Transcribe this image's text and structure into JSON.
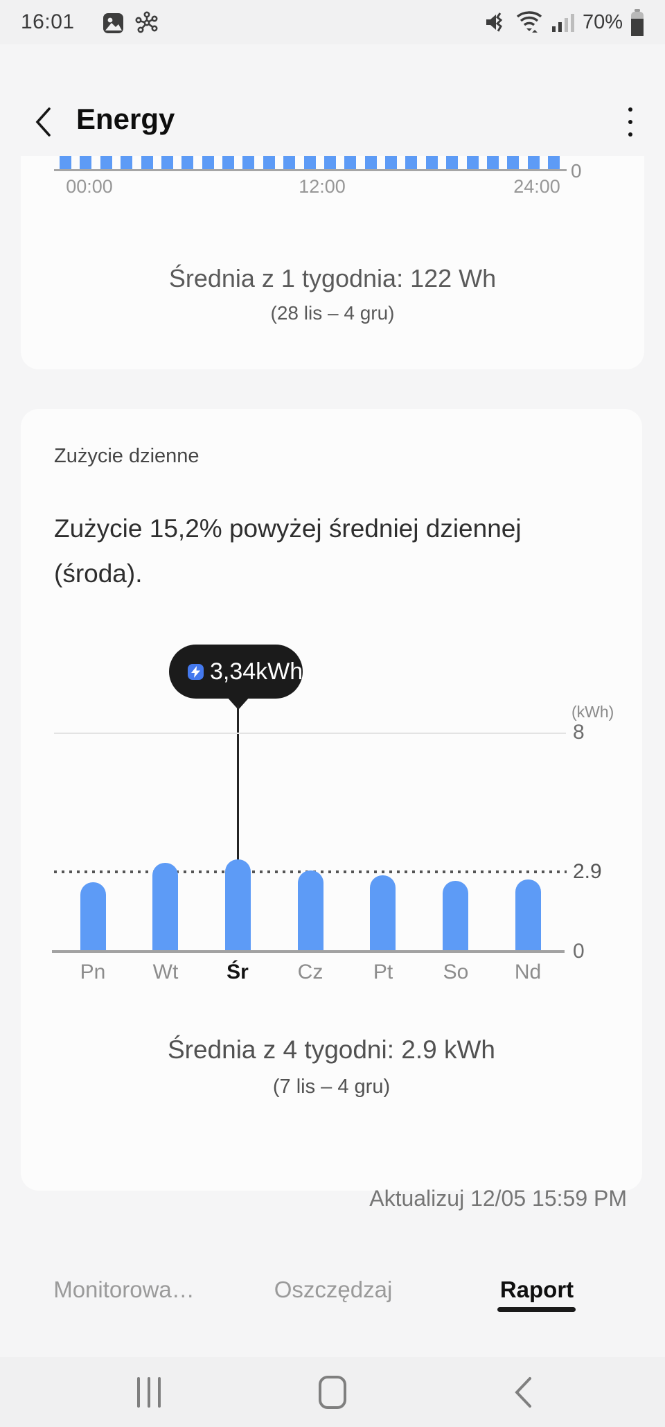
{
  "status_bar": {
    "time": "16:01",
    "battery_percent": "70%"
  },
  "header": {
    "title": "Energy"
  },
  "hourly_card": {
    "y_zero": "0",
    "x_labels": [
      "00:00",
      "12:00",
      "24:00"
    ],
    "average": "Średnia z 1 tygodnia: 122 Wh",
    "range": "(28 lis – 4 gru)"
  },
  "daily_card": {
    "section_title": "Zużycie dzienne",
    "insight": "Zużycie 15,2% powyżej średniej dziennej (środa).",
    "tooltip_value": "3,34kWh",
    "unit_label": "(kWh)",
    "y_max": "8",
    "y_avg": "2.9",
    "y_zero": "0",
    "highlighted_day": "Śr",
    "average": "Średnia z 4 tygodni: 2.9 kWh",
    "range": "(7 lis – 4 gru)"
  },
  "footer": {
    "update_text": "Aktualizuj 12/05 15:59 PM"
  },
  "tabs": {
    "items": [
      {
        "label": "Monitorowa…",
        "active": false
      },
      {
        "label": "Oszczędzaj",
        "active": false
      },
      {
        "label": "Raport",
        "active": true
      }
    ]
  },
  "colors": {
    "accent_blue": "#5D9BF6",
    "tooltip_bg": "#1B1B1B",
    "tooltip_icon_blue": "#4479EE",
    "page_bg": "#F5F5F6",
    "card_bg": "#FCFCFC"
  },
  "chart_data": [
    {
      "type": "bar",
      "title": "Hourly energy use (bottom of chart visible, bars clipped)",
      "unit": "Wh",
      "x": [
        "00:00",
        "12:00",
        "24:00"
      ],
      "values": [
        122,
        122,
        122,
        122,
        122,
        122,
        122,
        122,
        122,
        122,
        122,
        122,
        122,
        122,
        122,
        122,
        122,
        122,
        122,
        122,
        122,
        122,
        122,
        122,
        122
      ],
      "ylabel": "0",
      "note": "25 uniform blue bars, average 122 Wh per hour, week 28 lis – 4 gru"
    },
    {
      "type": "bar",
      "title": "Zużycie dzienne",
      "unit": "kWh",
      "categories": [
        "Pn",
        "Wt",
        "Śr",
        "Cz",
        "Pt",
        "So",
        "Nd"
      ],
      "values": [
        2.5,
        3.2,
        3.34,
        2.93,
        2.75,
        2.55,
        2.6
      ],
      "highlighted_category": "Śr",
      "highlighted_value_label": "3,34kWh",
      "average_line": 2.9,
      "ylim": [
        0,
        8
      ],
      "yticks": [
        0,
        2.9,
        8
      ],
      "legend": "none",
      "grid": "y gridline at 8 solid, dotted average line at 2.9"
    }
  ]
}
